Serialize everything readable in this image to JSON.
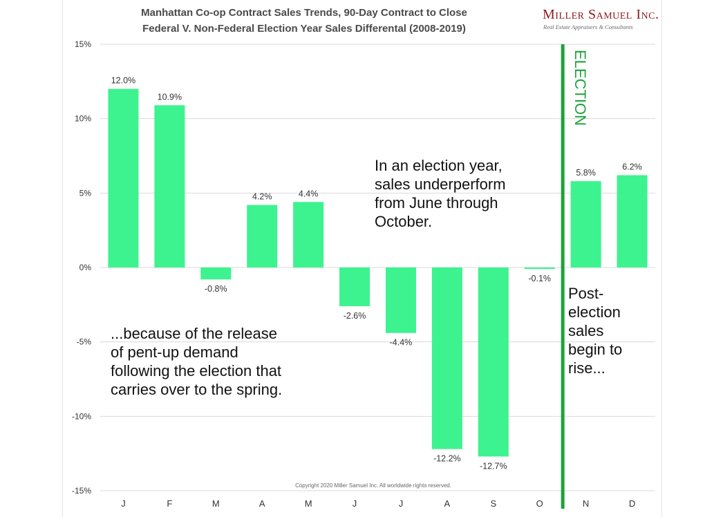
{
  "header": {
    "title_line1": "Manhattan Co-op Contract Sales Trends, 90-Day Contract to Close",
    "title_line2": "Federal V. Non-Federal Election Year Sales Differental (2008-2019)",
    "brand_name": "Miller Samuel Inc.",
    "brand_tagline": "Real Estate Appraisers & Consultants"
  },
  "annotations": {
    "middle": "In an election year,\nsales underperform\nfrom June through\nOctober.",
    "left": "...because of the release\nof pent-up demand\nfollowing the election that\ncarries over to the spring.",
    "right": "Post-\nelection\nsales\nbegin to\nrise..."
  },
  "footer": {
    "copyright": "Copyright 2020 Miller Samuel Inc. All worldwide rights reserved."
  },
  "colors": {
    "bar": "#3df38f",
    "election_line": "#1ea23a",
    "grid": "#d9d9d9",
    "text": "#333333"
  },
  "chart_data": {
    "type": "bar",
    "title": "Manhattan Co-op Contract Sales Trends, 90-Day Contract to Close — Federal V. Non-Federal Election Year Sales Differental (2008-2019)",
    "categories": [
      "J",
      "F",
      "M",
      "A",
      "M",
      "J",
      "J",
      "A",
      "S",
      "O",
      "N",
      "D"
    ],
    "values": [
      12.0,
      10.9,
      -0.8,
      4.2,
      4.4,
      -2.6,
      -4.4,
      -12.2,
      -12.7,
      -0.1,
      5.8,
      6.2
    ],
    "value_labels": [
      "12.0%",
      "10.9%",
      "-0.8%",
      "4.2%",
      "4.4%",
      "-2.6%",
      "-4.4%",
      "-12.2%",
      "-12.7%",
      "-0.1%",
      "5.8%",
      "6.2%"
    ],
    "ylim": [
      -15,
      15
    ],
    "yticks": [
      15,
      10,
      5,
      0,
      -5,
      -10,
      -15
    ],
    "ytick_labels": [
      "15%",
      "10%",
      "5%",
      "0%",
      "-5%",
      "-10%",
      "-15%"
    ],
    "xlabel": "",
    "ylabel": "",
    "grid": true,
    "vline": {
      "after_category_index": 9,
      "label": "ELECTION"
    }
  }
}
